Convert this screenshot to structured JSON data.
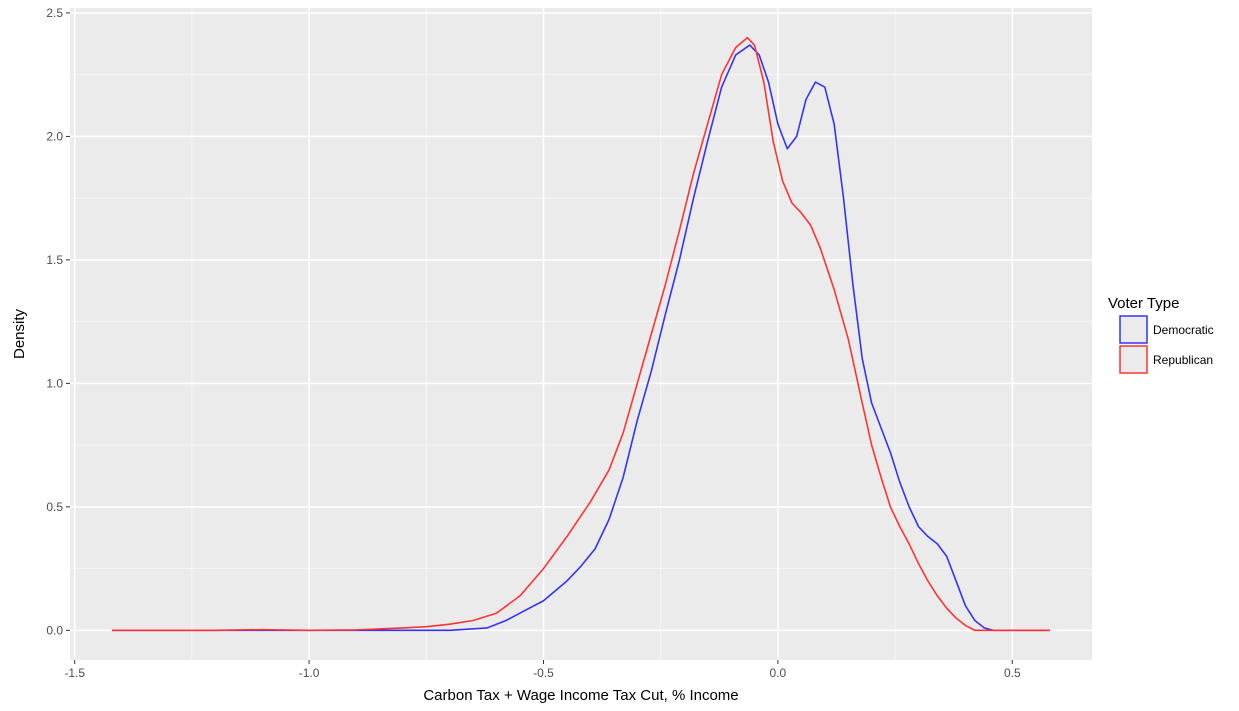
{
  "chart_data": {
    "type": "line",
    "title": "",
    "xlabel": "Carbon Tax + Wage Income Tax Cut, % Income",
    "ylabel": "Density",
    "xlim": [
      -1.51,
      0.67
    ],
    "ylim": [
      -0.12,
      2.52
    ],
    "x_ticks": [
      -1.5,
      -1.0,
      -0.5,
      0.0,
      0.5
    ],
    "x_tick_labels": [
      "-1.5",
      "-1.0",
      "-0.5",
      "0.0",
      "0.5"
    ],
    "y_ticks": [
      0.0,
      0.5,
      1.0,
      1.5,
      2.0,
      2.5
    ],
    "y_tick_labels": [
      "0.0",
      "0.5",
      "1.0",
      "1.5",
      "2.0",
      "2.5"
    ],
    "grid": true,
    "legend": {
      "title": "Voter Type",
      "position": "right"
    },
    "series": [
      {
        "name": "Democratic",
        "color": "#3333ff",
        "points": [
          [
            -1.42,
            0.0
          ],
          [
            -1.2,
            0.0
          ],
          [
            -1.0,
            0.0
          ],
          [
            -0.8,
            0.0
          ],
          [
            -0.7,
            0.0
          ],
          [
            -0.62,
            0.01
          ],
          [
            -0.58,
            0.04
          ],
          [
            -0.55,
            0.07
          ],
          [
            -0.5,
            0.12
          ],
          [
            -0.45,
            0.2
          ],
          [
            -0.42,
            0.26
          ],
          [
            -0.39,
            0.33
          ],
          [
            -0.36,
            0.45
          ],
          [
            -0.33,
            0.62
          ],
          [
            -0.3,
            0.85
          ],
          [
            -0.27,
            1.05
          ],
          [
            -0.24,
            1.28
          ],
          [
            -0.21,
            1.5
          ],
          [
            -0.18,
            1.75
          ],
          [
            -0.15,
            1.98
          ],
          [
            -0.12,
            2.2
          ],
          [
            -0.09,
            2.33
          ],
          [
            -0.06,
            2.37
          ],
          [
            -0.04,
            2.33
          ],
          [
            -0.02,
            2.22
          ],
          [
            0.0,
            2.05
          ],
          [
            0.02,
            1.95
          ],
          [
            0.04,
            2.0
          ],
          [
            0.06,
            2.15
          ],
          [
            0.08,
            2.22
          ],
          [
            0.1,
            2.2
          ],
          [
            0.12,
            2.05
          ],
          [
            0.14,
            1.75
          ],
          [
            0.16,
            1.4
          ],
          [
            0.18,
            1.1
          ],
          [
            0.2,
            0.92
          ],
          [
            0.22,
            0.82
          ],
          [
            0.24,
            0.72
          ],
          [
            0.26,
            0.6
          ],
          [
            0.28,
            0.5
          ],
          [
            0.3,
            0.42
          ],
          [
            0.32,
            0.38
          ],
          [
            0.34,
            0.35
          ],
          [
            0.36,
            0.3
          ],
          [
            0.38,
            0.2
          ],
          [
            0.4,
            0.1
          ],
          [
            0.42,
            0.04
          ],
          [
            0.44,
            0.01
          ],
          [
            0.46,
            0.0
          ],
          [
            0.5,
            0.0
          ],
          [
            0.58,
            0.0
          ]
        ]
      },
      {
        "name": "Republican",
        "color": "#ff3333",
        "points": [
          [
            -1.42,
            0.0
          ],
          [
            -1.2,
            0.0
          ],
          [
            -1.1,
            0.003
          ],
          [
            -1.0,
            0.0
          ],
          [
            -0.9,
            0.002
          ],
          [
            -0.8,
            0.01
          ],
          [
            -0.75,
            0.015
          ],
          [
            -0.7,
            0.025
          ],
          [
            -0.65,
            0.04
          ],
          [
            -0.6,
            0.07
          ],
          [
            -0.55,
            0.14
          ],
          [
            -0.5,
            0.25
          ],
          [
            -0.45,
            0.38
          ],
          [
            -0.4,
            0.52
          ],
          [
            -0.36,
            0.65
          ],
          [
            -0.33,
            0.8
          ],
          [
            -0.3,
            1.0
          ],
          [
            -0.27,
            1.2
          ],
          [
            -0.24,
            1.4
          ],
          [
            -0.21,
            1.62
          ],
          [
            -0.18,
            1.85
          ],
          [
            -0.15,
            2.05
          ],
          [
            -0.12,
            2.25
          ],
          [
            -0.09,
            2.36
          ],
          [
            -0.065,
            2.4
          ],
          [
            -0.05,
            2.37
          ],
          [
            -0.03,
            2.22
          ],
          [
            -0.01,
            1.98
          ],
          [
            0.01,
            1.82
          ],
          [
            0.03,
            1.73
          ],
          [
            0.05,
            1.69
          ],
          [
            0.07,
            1.64
          ],
          [
            0.09,
            1.55
          ],
          [
            0.12,
            1.38
          ],
          [
            0.15,
            1.18
          ],
          [
            0.18,
            0.92
          ],
          [
            0.2,
            0.75
          ],
          [
            0.22,
            0.62
          ],
          [
            0.24,
            0.5
          ],
          [
            0.26,
            0.42
          ],
          [
            0.28,
            0.35
          ],
          [
            0.3,
            0.27
          ],
          [
            0.32,
            0.2
          ],
          [
            0.34,
            0.14
          ],
          [
            0.36,
            0.09
          ],
          [
            0.38,
            0.05
          ],
          [
            0.4,
            0.02
          ],
          [
            0.42,
            0.0
          ],
          [
            0.5,
            0.0
          ],
          [
            0.58,
            0.0
          ]
        ]
      }
    ]
  }
}
